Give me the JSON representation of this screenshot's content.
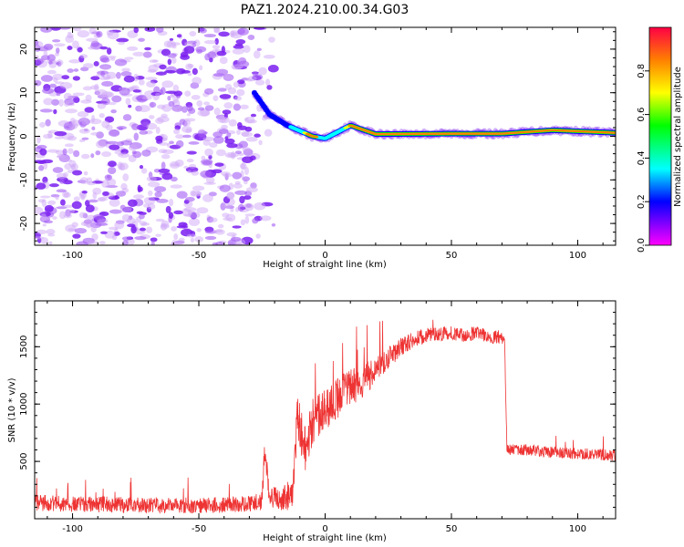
{
  "title": "PAZ1.2024.210.00.34.G03",
  "chart_data": [
    {
      "type": "heatmap",
      "title": "PAZ1.2024.210.00.34.G03",
      "xlabel": "Height of straight line (km)",
      "ylabel": "Frequency (Hz)",
      "xlim": [
        -115,
        115
      ],
      "ylim": [
        -25,
        25
      ],
      "x_ticks": [
        -100,
        -50,
        0,
        50,
        100
      ],
      "x_tick_labels": [
        "-100",
        "-50",
        "0",
        "50",
        "100"
      ],
      "y_ticks": [
        -20,
        -10,
        0,
        10,
        20
      ],
      "y_tick_labels": [
        "-20",
        "-10",
        "0",
        "10",
        "20"
      ],
      "grid": false,
      "colormap": [
        "#ff00ff",
        "#0000ff",
        "#00ffff",
        "#00ff00",
        "#ffff00",
        "#ff8000",
        "#ff0000"
      ],
      "colorbar": {
        "label": "Normalized spectral amplitude",
        "range": [
          0,
          1
        ],
        "ticks": [
          0,
          0.2,
          0.4,
          0.6,
          0.8
        ],
        "tick_labels": [
          "0.0",
          "0.2",
          "0.4",
          "0.6",
          "0.8"
        ]
      },
      "noise_region_x": [
        -115,
        -20
      ],
      "ridge": [
        {
          "x": -28,
          "y": 10,
          "amp": 0.55
        },
        {
          "x": -22,
          "y": 5,
          "amp": 0.4
        },
        {
          "x": -15,
          "y": 2.5,
          "amp": 0.5
        },
        {
          "x": -5,
          "y": 0,
          "amp": 0.95
        },
        {
          "x": 0,
          "y": -0.5,
          "amp": 0.6
        },
        {
          "x": 10,
          "y": 2.5,
          "amp": 0.85
        },
        {
          "x": 20,
          "y": 0.5,
          "amp": 0.95
        },
        {
          "x": 50,
          "y": 0.6,
          "amp": 0.95
        },
        {
          "x": 70,
          "y": 0.6,
          "amp": 0.9
        },
        {
          "x": 90,
          "y": 1.4,
          "amp": 0.95
        },
        {
          "x": 115,
          "y": 0.8,
          "amp": 0.95
        }
      ]
    },
    {
      "type": "line",
      "xlabel": "Height of straight line (km)",
      "ylabel": "SNR (10 * v/v)",
      "xlim": [
        -115,
        115
      ],
      "ylim": [
        0,
        1900
      ],
      "x_ticks": [
        -100,
        -50,
        0,
        50,
        100
      ],
      "x_tick_labels": [
        "-100",
        "-50",
        "0",
        "50",
        "100"
      ],
      "y_ticks": [
        500,
        1000,
        1500
      ],
      "y_tick_labels": [
        "500",
        "1000",
        "1500"
      ],
      "grid": false,
      "line_color": "#ee3333",
      "series": [
        {
          "x": [
            -115,
            -100,
            -80,
            -60,
            -40,
            -30,
            -25,
            -24,
            -22,
            -18,
            -13,
            -11,
            -8,
            -5,
            0,
            5,
            10,
            15,
            20,
            25,
            30,
            35,
            40,
            45,
            50,
            55,
            60,
            65,
            71,
            72,
            80,
            90,
            100,
            110,
            115
          ],
          "y": [
            140,
            130,
            120,
            115,
            120,
            130,
            150,
            620,
            200,
            170,
            220,
            900,
            600,
            850,
            950,
            1050,
            1150,
            1200,
            1300,
            1400,
            1500,
            1560,
            1600,
            1610,
            1620,
            1600,
            1620,
            1590,
            1580,
            600,
            600,
            580,
            570,
            560,
            550
          ],
          "noise": [
            70,
            70,
            70,
            70,
            70,
            70,
            80,
            120,
            100,
            90,
            150,
            200,
            200,
            200,
            180,
            180,
            170,
            150,
            120,
            100,
            80,
            70,
            70,
            60,
            60,
            60,
            60,
            60,
            60,
            50,
            50,
            50,
            50,
            50,
            50
          ]
        }
      ]
    }
  ]
}
